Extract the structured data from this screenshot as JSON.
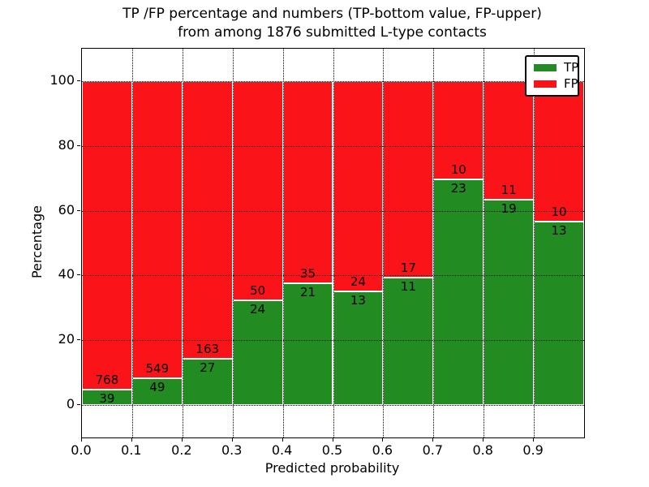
{
  "figure": {
    "title_line1": "TP /FP percentage and numbers (TP-bottom value, FP-upper)",
    "title_line2": "from among 1876 submitted L-type contacts",
    "xlabel": "Predicted probability",
    "ylabel": "Percentage"
  },
  "chart_data": {
    "type": "bar",
    "subtype": "stacked-100-percent",
    "title": "TP /FP percentage and numbers (TP-bottom value, FP-upper)\nfrom among 1876 submitted L-type contacts",
    "xlabel": "Predicted probability",
    "ylabel": "Percentage",
    "total_contacts": 1876,
    "bin_width": 0.1,
    "bins": [
      {
        "x_start": 0.0,
        "x_end": 0.1,
        "tp": 39,
        "fp": 768,
        "tp_pct": 4.8
      },
      {
        "x_start": 0.1,
        "x_end": 0.2,
        "tp": 49,
        "fp": 549,
        "tp_pct": 8.2
      },
      {
        "x_start": 0.2,
        "x_end": 0.3,
        "tp": 27,
        "fp": 163,
        "tp_pct": 14.2
      },
      {
        "x_start": 0.3,
        "x_end": 0.4,
        "tp": 24,
        "fp": 50,
        "tp_pct": 32.4
      },
      {
        "x_start": 0.4,
        "x_end": 0.5,
        "tp": 21,
        "fp": 35,
        "tp_pct": 37.5
      },
      {
        "x_start": 0.5,
        "x_end": 0.6,
        "tp": 13,
        "fp": 24,
        "tp_pct": 35.1
      },
      {
        "x_start": 0.6,
        "x_end": 0.7,
        "tp": 11,
        "fp": 17,
        "tp_pct": 39.3
      },
      {
        "x_start": 0.7,
        "x_end": 0.8,
        "tp": 23,
        "fp": 10,
        "tp_pct": 69.7
      },
      {
        "x_start": 0.8,
        "x_end": 0.9,
        "tp": 19,
        "fp": 11,
        "tp_pct": 63.3
      },
      {
        "x_start": 0.9,
        "x_end": 1.0,
        "tp": 13,
        "fp": 10,
        "tp_pct": 56.5
      }
    ],
    "series": [
      {
        "name": "TP",
        "color": "#228b22",
        "values": [
          39,
          49,
          27,
          24,
          21,
          13,
          11,
          23,
          19,
          13
        ]
      },
      {
        "name": "FP",
        "color": "#fa1419",
        "values": [
          768,
          549,
          163,
          50,
          35,
          24,
          17,
          10,
          11,
          10
        ]
      }
    ],
    "xticks": [
      "0.0",
      "0.1",
      "0.2",
      "0.3",
      "0.4",
      "0.5",
      "0.6",
      "0.7",
      "0.8",
      "0.9"
    ],
    "yticks": [
      "0",
      "20",
      "40",
      "60",
      "80",
      "100"
    ],
    "ytick_values": [
      0,
      20,
      40,
      60,
      80,
      100
    ],
    "xtick_values": [
      0.0,
      0.1,
      0.2,
      0.3,
      0.4,
      0.5,
      0.6,
      0.7,
      0.8,
      0.9
    ],
    "xlim": [
      0.0,
      1.0
    ],
    "ylim": [
      -10,
      110
    ],
    "grid": true,
    "grid_style": "dotted",
    "colors": {
      "tp": "#228b22",
      "fp": "#fa1419",
      "bar_edge": "#ffffff",
      "text": "#000000",
      "background": "#ffffff"
    },
    "legend": {
      "position": "upper-right",
      "entries": [
        {
          "label": "TP",
          "color": "#228b22"
        },
        {
          "label": "FP",
          "color": "#fa1419"
        }
      ]
    }
  }
}
